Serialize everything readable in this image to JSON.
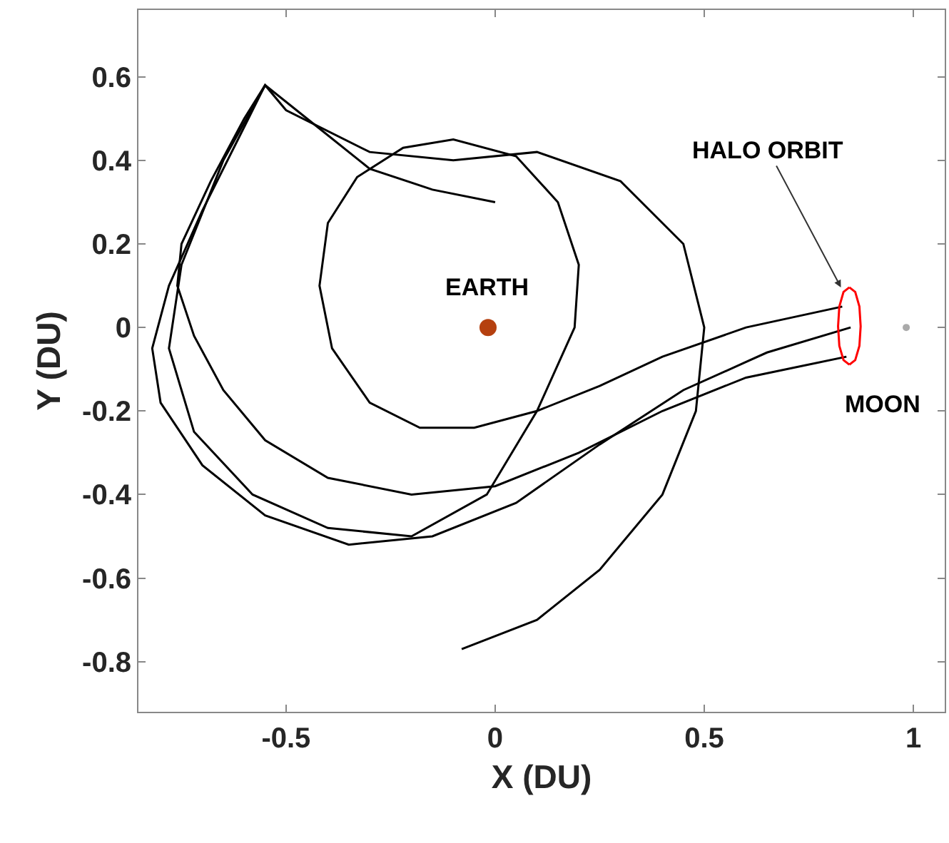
{
  "chart_data": {
    "type": "line",
    "xlabel": "X (DU)",
    "ylabel": "Y (DU)",
    "xlim": [
      -0.853,
      1.075
    ],
    "ylim": [
      -0.92,
      0.76
    ],
    "xticks": [
      -0.5,
      0,
      0.5,
      1
    ],
    "yticks": [
      -0.8,
      -0.6,
      -0.4,
      -0.2,
      0,
      0.2,
      0.4,
      0.6
    ],
    "line_style": "solid",
    "series": [
      {
        "color": "#000000",
        "x": [
          0.83,
          0.6,
          0.4,
          0.25,
          0.1,
          -0.05,
          -0.18,
          -0.3,
          -0.39,
          -0.42,
          -0.4,
          -0.33,
          -0.22,
          -0.1,
          0.05,
          0.15,
          0.2,
          0.19,
          0.1,
          -0.02,
          -0.2,
          -0.4,
          -0.58,
          -0.72,
          -0.78,
          -0.75,
          -0.65,
          -0.55
        ],
        "values": [
          0.05,
          0.0,
          -0.07,
          -0.14,
          -0.2,
          -0.24,
          -0.24,
          -0.18,
          -0.05,
          0.1,
          0.25,
          0.36,
          0.43,
          0.45,
          0.41,
          0.3,
          0.15,
          0.0,
          -0.2,
          -0.4,
          -0.5,
          -0.48,
          -0.4,
          -0.25,
          -0.05,
          0.15,
          0.4,
          0.58
        ]
      },
      {
        "color": "#000000",
        "x": [
          0.84,
          0.6,
          0.4,
          0.2,
          0.0,
          -0.2,
          -0.4,
          -0.55,
          -0.65,
          -0.72,
          -0.76,
          -0.75,
          -0.68,
          -0.6,
          -0.55,
          -0.5,
          -0.3,
          -0.1,
          0.1,
          0.3,
          0.45,
          0.5,
          0.48,
          0.4,
          0.25,
          0.1,
          -0.08
        ],
        "values": [
          -0.07,
          -0.12,
          -0.2,
          -0.3,
          -0.38,
          -0.4,
          -0.36,
          -0.27,
          -0.15,
          -0.02,
          0.1,
          0.2,
          0.35,
          0.5,
          0.58,
          0.52,
          0.42,
          0.4,
          0.42,
          0.35,
          0.2,
          0.0,
          -0.2,
          -0.4,
          -0.58,
          -0.7,
          -0.77
        ]
      },
      {
        "color": "#000000",
        "x": [
          0.85,
          0.65,
          0.45,
          0.25,
          0.05,
          -0.15,
          -0.35,
          -0.55,
          -0.7,
          -0.8,
          -0.82,
          -0.78,
          -0.7,
          -0.6,
          -0.55,
          -0.45,
          -0.3,
          -0.15,
          0.0
        ],
        "values": [
          0.0,
          -0.06,
          -0.15,
          -0.28,
          -0.42,
          -0.5,
          -0.52,
          -0.45,
          -0.33,
          -0.18,
          -0.05,
          0.1,
          0.28,
          0.48,
          0.58,
          0.5,
          0.38,
          0.33,
          0.3
        ]
      },
      {
        "color": "#ff0000",
        "x": [
          0.847,
          0.861,
          0.871,
          0.874,
          0.871,
          0.861,
          0.847
        ],
        "values": [
          0.096,
          0.085,
          0.05,
          0.003,
          -0.044,
          -0.078,
          -0.089
        ]
      },
      {
        "color": "#ff0000",
        "x": [
          0.847,
          0.833,
          0.823,
          0.82,
          0.823,
          0.833,
          0.847
        ],
        "values": [
          -0.089,
          -0.078,
          -0.044,
          0.003,
          0.05,
          0.085,
          0.096
        ]
      },
      {
        "type": "scatter",
        "marker": "circle",
        "color": "#b5400f",
        "x": [
          -0.017
        ],
        "values": [
          0.0
        ]
      },
      {
        "type": "scatter",
        "marker": "circle",
        "color": "#aaaaaa",
        "x": [
          0.983
        ],
        "values": [
          0.0
        ]
      }
    ],
    "annotations": [
      {
        "text": "EARTH",
        "x": -0.017,
        "y": 0.0
      },
      {
        "text": "HALO ORBIT",
        "x": 0.83,
        "y": 0.09
      },
      {
        "text": "MOON",
        "x": 0.983,
        "y": 0.0
      }
    ]
  }
}
